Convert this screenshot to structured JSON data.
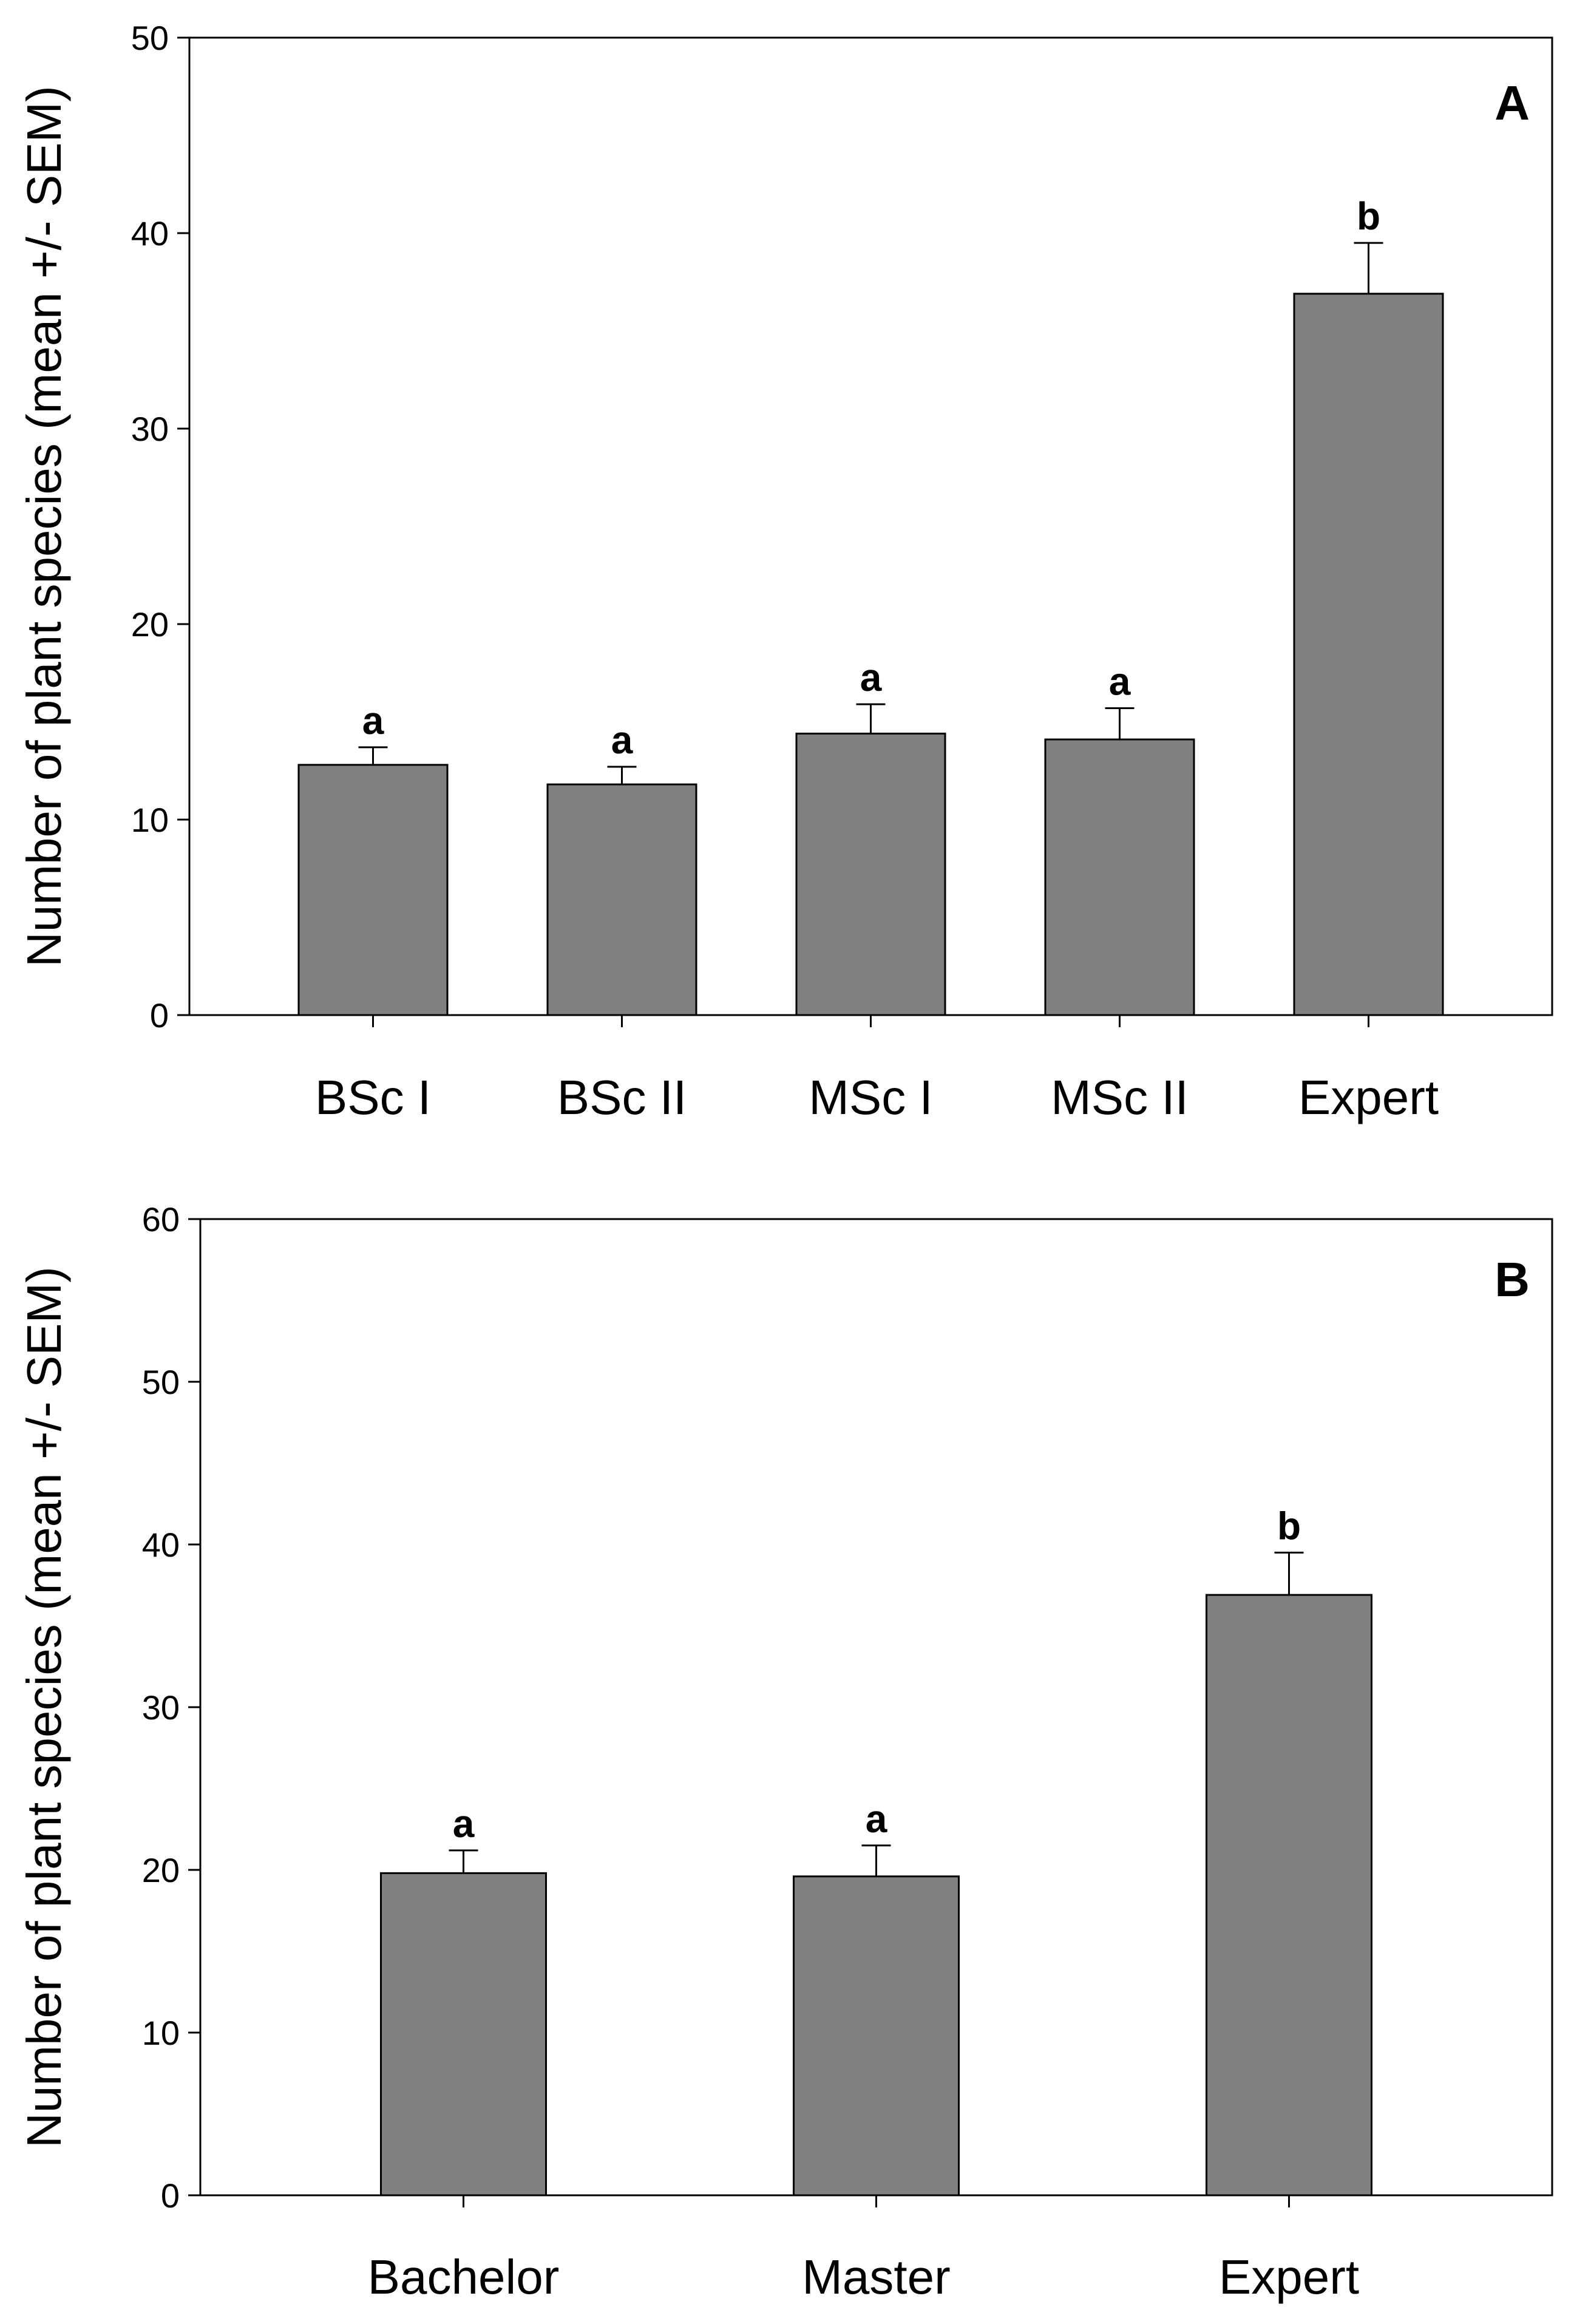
{
  "chart_data": [
    {
      "type": "bar",
      "panel": "A",
      "ylabel": "Number of plant species (mean +/- SEM)",
      "xlabel": "",
      "ylim": [
        0,
        50
      ],
      "yticks": [
        0,
        10,
        20,
        30,
        40,
        50
      ],
      "categories": [
        "BSc I",
        "BSc II",
        "MSc I",
        "MSc II",
        "Expert"
      ],
      "series": [
        {
          "name": "Number of plant species",
          "values": [
            12.8,
            11.8,
            14.4,
            14.1,
            36.9
          ],
          "sem": [
            0.9,
            0.9,
            1.5,
            1.6,
            2.6
          ],
          "significance": [
            "a",
            "a",
            "a",
            "a",
            "b"
          ]
        }
      ],
      "bar_color": "#808080",
      "grid": false
    },
    {
      "type": "bar",
      "panel": "B",
      "ylabel": "Number of plant species (mean +/- SEM)",
      "xlabel": "",
      "ylim": [
        0,
        60
      ],
      "yticks": [
        0,
        10,
        20,
        30,
        40,
        50,
        60
      ],
      "categories": [
        "Bachelor",
        "Master",
        "Expert"
      ],
      "series": [
        {
          "name": "Number of plant species",
          "values": [
            19.8,
            19.6,
            36.9
          ],
          "sem": [
            1.4,
            1.9,
            2.6
          ],
          "significance": [
            "a",
            "a",
            "b"
          ]
        }
      ],
      "bar_color": "#808080",
      "grid": false
    }
  ]
}
